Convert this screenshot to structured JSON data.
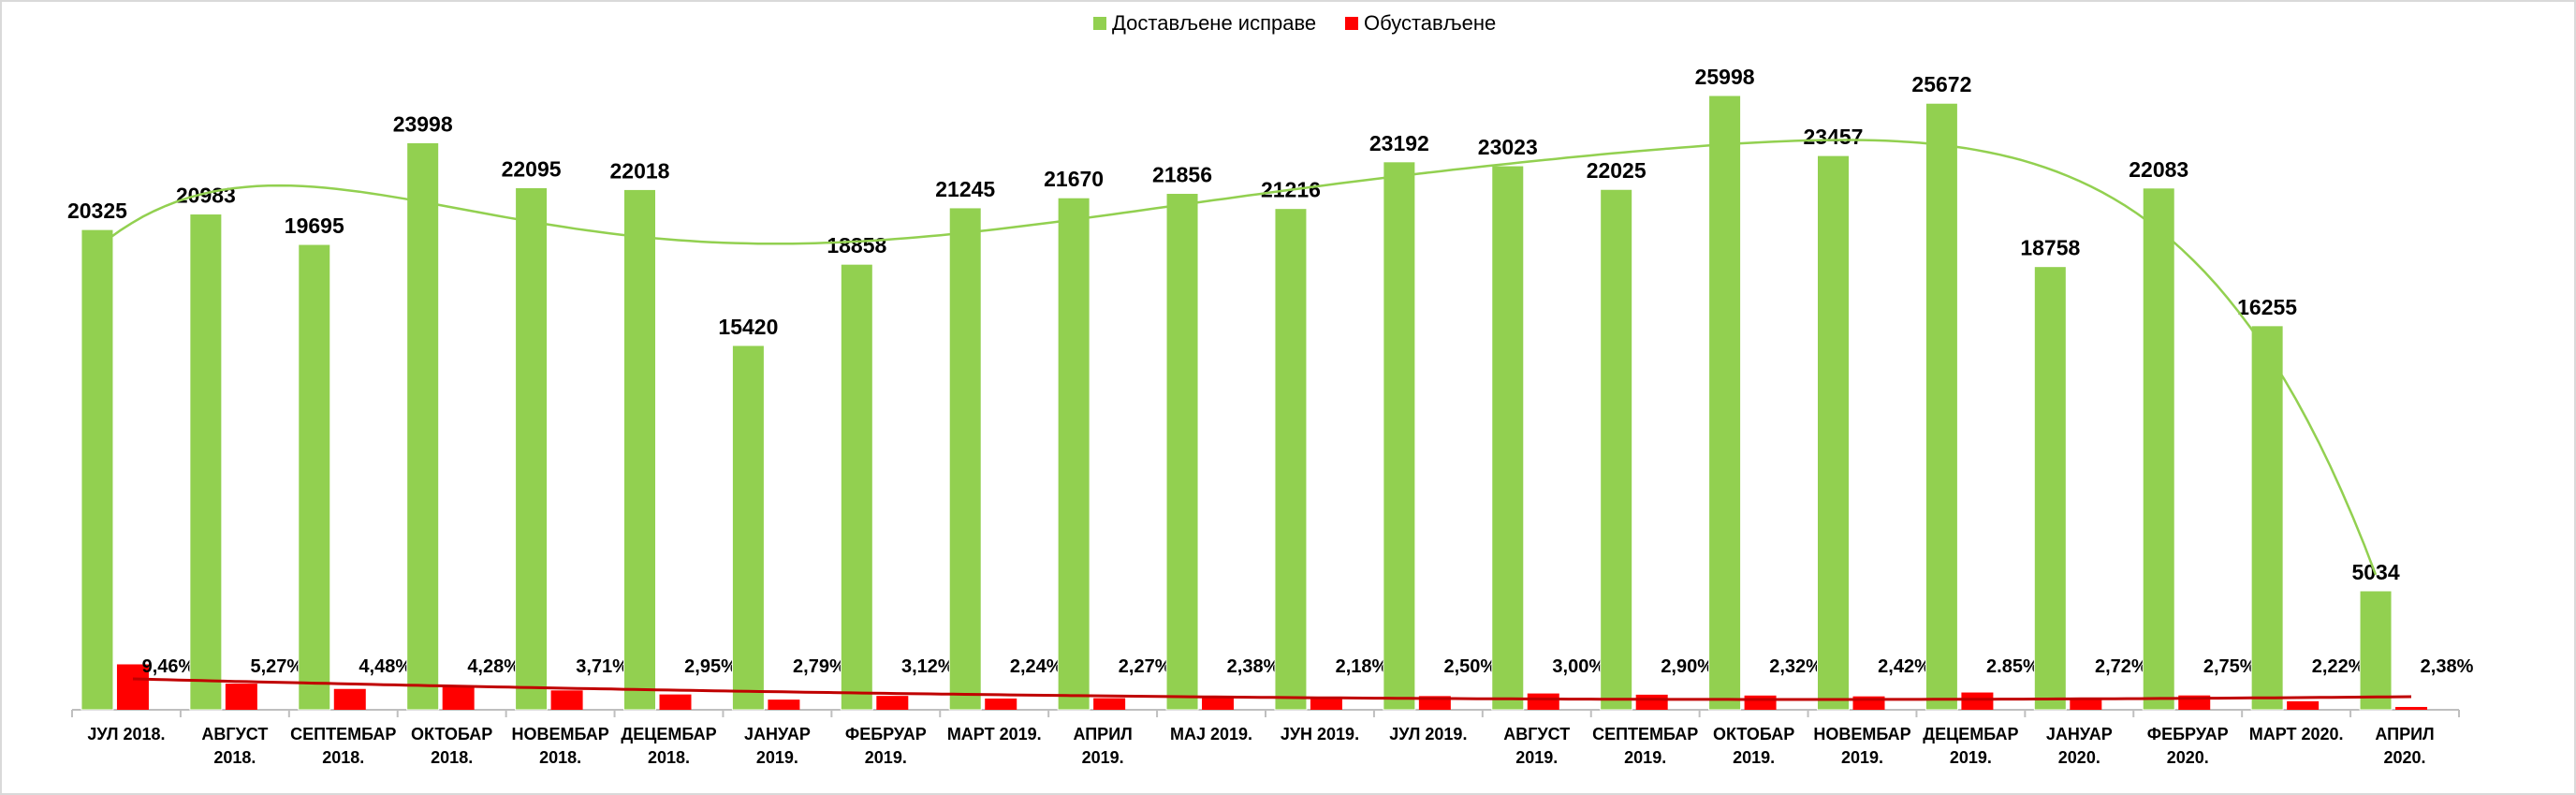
{
  "chart_data": {
    "type": "bar",
    "title": "",
    "categories": [
      [
        "ЈУЛ 2018."
      ],
      [
        "АВГУСТ",
        "2018."
      ],
      [
        "СЕПТЕМБАР",
        "2018."
      ],
      [
        "ОКТОБАР",
        "2018."
      ],
      [
        "НОВЕМБАР",
        "2018."
      ],
      [
        "ДЕЦЕМБАР",
        "2018."
      ],
      [
        "ЈАНУАР",
        "2019."
      ],
      [
        "ФЕБРУАР",
        "2019."
      ],
      [
        "МАРТ 2019."
      ],
      [
        "АПРИЛ",
        "2019."
      ],
      [
        "МАЈ 2019."
      ],
      [
        "ЈУН 2019."
      ],
      [
        "ЈУЛ 2019."
      ],
      [
        "АВГУСТ",
        "2019."
      ],
      [
        "СЕПТЕМБАР",
        "2019."
      ],
      [
        "ОКТОБАР",
        "2019."
      ],
      [
        "НОВЕМБАР",
        "2019."
      ],
      [
        "ДЕЦЕМБАР",
        "2019."
      ],
      [
        "ЈАНУАР",
        "2020."
      ],
      [
        "ФЕБРУАР",
        "2020."
      ],
      [
        "МАРТ 2020."
      ],
      [
        "АПРИЛ",
        "2020."
      ]
    ],
    "series": [
      {
        "name": "Достављене исправе",
        "color": "#92d050",
        "values": [
          20325,
          20983,
          19695,
          23998,
          22095,
          22018,
          15420,
          18858,
          21245,
          21670,
          21856,
          21216,
          23192,
          23023,
          22025,
          25998,
          23457,
          25672,
          18758,
          22083,
          16255,
          5034
        ],
        "labels": [
          "20325",
          "20983",
          "19695",
          "23998",
          "22095",
          "22018",
          "15420",
          "18858",
          "21245",
          "21670",
          "21856",
          "21216",
          "23192",
          "23023",
          "22025",
          "25998",
          "23457",
          "25672",
          "18758",
          "22083",
          "16255",
          "5034"
        ]
      },
      {
        "name": "Обустављене",
        "color": "#ff0000",
        "percentages": [
          9.46,
          5.27,
          4.48,
          4.28,
          3.71,
          2.95,
          2.79,
          3.12,
          2.24,
          2.27,
          2.38,
          2.18,
          2.5,
          3.0,
          2.9,
          2.32,
          2.42,
          2.85,
          2.72,
          2.75,
          2.22,
          2.38
        ],
        "labels": [
          "9,46%",
          "5,27%",
          "4,48%",
          "4,28%",
          "3,71%",
          "2,95%",
          "2,79%",
          "3,12%",
          "2,24%",
          "2,27%",
          "2,38%",
          "2,18%",
          "2,50%",
          "3,00%",
          "2,90%",
          "2,32%",
          "2,42%",
          "2.85%",
          "2,72%",
          "2,75%",
          "2,22%",
          "2,38%"
        ]
      }
    ],
    "ylim": [
      0,
      27000
    ],
    "grid": false,
    "legend": "top-center",
    "trendlines": [
      {
        "series": "Достављене исправе",
        "color": "#92d050"
      },
      {
        "series": "Обустављене",
        "color": "#c00000"
      }
    ]
  }
}
